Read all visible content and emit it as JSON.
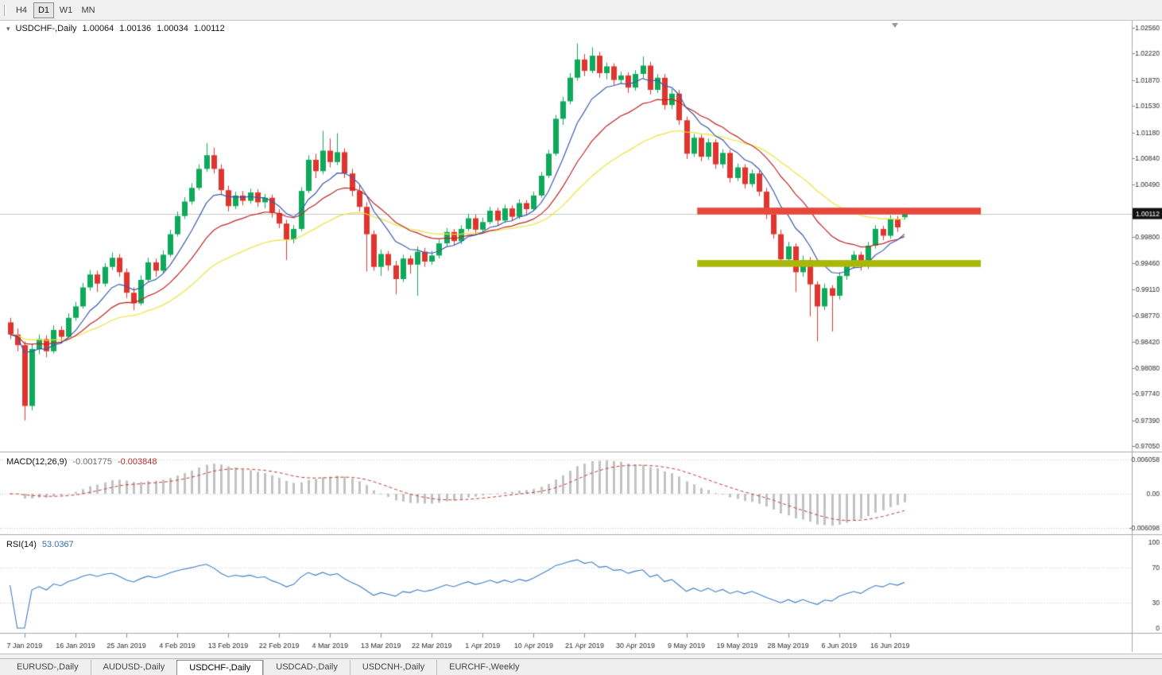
{
  "toolbar": {
    "timeframes": [
      {
        "label": "H4",
        "active": false
      },
      {
        "label": "D1",
        "active": true
      },
      {
        "label": "W1",
        "active": false
      },
      {
        "label": "MN",
        "active": false
      }
    ]
  },
  "chart_window": {
    "title": "USDCHF-,Daily",
    "quote": {
      "open": "1.00064",
      "high": "1.00136",
      "low": "1.00034",
      "close": "1.00112"
    }
  },
  "macd_panel": {
    "label": "MACD(12,26,9)",
    "macd_value": "-0.001775",
    "signal_value": "-0.003848",
    "axis_labels": [
      "0.006058",
      "0.00",
      "-0.006098"
    ],
    "params": {
      "fast": 12,
      "slow": 26,
      "signal": 9
    },
    "histogram_color": "#c2c2c2",
    "signal_color": "#c23b33"
  },
  "rsi_panel": {
    "label": "RSI(14)",
    "value": "53.0367",
    "period": 14,
    "axis_labels": [
      "100",
      "70",
      "30",
      "0"
    ],
    "levels": [
      70,
      30
    ],
    "line_color": "#3e7dc2"
  },
  "tabs": [
    {
      "label": "EURUSD-,Daily",
      "active": false
    },
    {
      "label": "AUDUSD-,Daily",
      "active": false
    },
    {
      "label": "USDCHF-,Daily",
      "active": true
    },
    {
      "label": "USDCAD-,Daily",
      "active": false
    },
    {
      "label": "USDCNH-,Daily",
      "active": false
    },
    {
      "label": "EURCHF-,Weekly",
      "active": false
    }
  ],
  "chart_data": {
    "type": "candlestick",
    "symbol": "USDCHF",
    "timeframe": "Daily",
    "colors": {
      "up": "#0ea95a",
      "down": "#e0352f",
      "ma_fast": "#3a5cad",
      "ma_mid": "#be2625",
      "ma_slow": "#ede23b",
      "current_price_line": "#c6c6c6",
      "resistance_band": "#e8483c",
      "support_band": "#a9b70b"
    },
    "price_axis": {
      "min": 0.97,
      "max": 1.0263,
      "labels": [
        "1.02560",
        "1.02220",
        "1.01870",
        "1.01530",
        "1.01180",
        "1.00840",
        "1.00490",
        "0.99800",
        "0.99460",
        "0.99110",
        "0.98770",
        "0.98420",
        "0.98080",
        "0.97740",
        "0.97390",
        "0.97050"
      ],
      "current_price": "1.00112",
      "current_price_value": 1.00112
    },
    "moving_average_periods": {
      "fast": 8,
      "mid": 17,
      "slow": 34
    },
    "date_labels": {
      "first_index": 2,
      "step": 7,
      "labels": [
        "7 Jan 2019",
        "16 Jan 2019",
        "25 Jan 2019",
        "4 Feb 2019",
        "13 Feb 2019",
        "22 Feb 2019",
        "4 Mar 2019",
        "13 Mar 2019",
        "22 Mar 2019",
        "1 Apr 2019",
        "10 Apr 2019",
        "21 Apr 2019",
        "30 Apr 2019",
        "9 May 2019",
        "19 May 2019",
        "28 May 2019",
        "6 Jun 2019",
        "16 Jun 2019"
      ]
    },
    "bands": [
      {
        "name": "resistance",
        "price_top": 1.0019,
        "price_bottom": 1.001,
        "start_index": 95,
        "end_index": 133,
        "color_key": "resistance_band"
      },
      {
        "name": "support",
        "price_top": 0.995,
        "price_bottom": 0.9941,
        "start_index": 95,
        "end_index": 133,
        "color_key": "support_band"
      }
    ],
    "candles": [
      [
        0.9868,
        0.9874,
        0.9846,
        0.9852
      ],
      [
        0.9852,
        0.986,
        0.983,
        0.9838
      ],
      [
        0.9838,
        0.9843,
        0.9739,
        0.9758
      ],
      [
        0.9758,
        0.984,
        0.9752,
        0.9833
      ],
      [
        0.9833,
        0.9852,
        0.9826,
        0.9846
      ],
      [
        0.9846,
        0.9851,
        0.9822,
        0.983
      ],
      [
        0.983,
        0.9864,
        0.9827,
        0.9858
      ],
      [
        0.9858,
        0.9863,
        0.984,
        0.9849
      ],
      [
        0.9849,
        0.988,
        0.9846,
        0.9874
      ],
      [
        0.9874,
        0.9895,
        0.987,
        0.9889
      ],
      [
        0.9889,
        0.992,
        0.9886,
        0.9914
      ],
      [
        0.9914,
        0.9937,
        0.991,
        0.9931
      ],
      [
        0.9931,
        0.9936,
        0.9908,
        0.9919
      ],
      [
        0.9919,
        0.9946,
        0.9915,
        0.9941
      ],
      [
        0.9941,
        0.996,
        0.9937,
        0.9953
      ],
      [
        0.9953,
        0.9958,
        0.9928,
        0.9934
      ],
      [
        0.9934,
        0.9939,
        0.99,
        0.9907
      ],
      [
        0.9907,
        0.9914,
        0.9884,
        0.9893
      ],
      [
        0.9893,
        0.993,
        0.989,
        0.9924
      ],
      [
        0.9924,
        0.9953,
        0.9921,
        0.9947
      ],
      [
        0.9947,
        0.9952,
        0.9928,
        0.9936
      ],
      [
        0.9936,
        0.9963,
        0.9933,
        0.9957
      ],
      [
        0.9957,
        0.999,
        0.9954,
        0.9984
      ],
      [
        0.9984,
        1.0014,
        0.9981,
        1.0008
      ],
      [
        1.0008,
        1.0033,
        1.0004,
        1.0027
      ],
      [
        1.0027,
        1.0051,
        1.0023,
        1.0045
      ],
      [
        1.0045,
        1.0076,
        1.0042,
        1.007
      ],
      [
        1.007,
        1.0104,
        1.0066,
        1.0088
      ],
      [
        1.0088,
        1.0098,
        1.0064,
        1.007
      ],
      [
        1.007,
        1.0076,
        1.0036,
        1.0042
      ],
      [
        1.0042,
        1.0048,
        1.0014,
        1.0021
      ],
      [
        1.0021,
        1.004,
        1.0017,
        1.0035
      ],
      [
        1.0035,
        1.0041,
        1.0022,
        1.0028
      ],
      [
        1.0028,
        1.0044,
        1.0024,
        1.0039
      ],
      [
        1.0039,
        1.0043,
        1.002,
        1.0026
      ],
      [
        1.0026,
        1.0037,
        1.0018,
        1.0032
      ],
      [
        1.0032,
        1.0036,
        1.0006,
        1.0012
      ],
      [
        1.0012,
        1.0017,
        0.9992,
        0.9998
      ],
      [
        0.9998,
        1.0003,
        0.995,
        0.9977
      ],
      [
        0.9977,
        0.9996,
        0.9972,
        0.9991
      ],
      [
        0.9991,
        1.0046,
        0.9988,
        1.0041
      ],
      [
        1.0041,
        1.0088,
        1.0038,
        1.0082
      ],
      [
        1.0082,
        1.009,
        1.0058,
        1.0067
      ],
      [
        1.0067,
        1.012,
        1.0063,
        1.0094
      ],
      [
        1.0094,
        1.011,
        1.0072,
        1.0079
      ],
      [
        1.0079,
        1.0117,
        1.0075,
        1.0092
      ],
      [
        1.0092,
        1.0097,
        1.0058,
        1.0064
      ],
      [
        1.0064,
        1.007,
        1.0034,
        1.0041
      ],
      [
        1.0041,
        1.0049,
        1.0014,
        1.002
      ],
      [
        1.002,
        1.0026,
        0.9935,
        0.9984
      ],
      [
        0.9984,
        0.9989,
        0.9936,
        0.9941
      ],
      [
        0.9941,
        0.9964,
        0.9929,
        0.9958
      ],
      [
        0.9958,
        0.9962,
        0.9936,
        0.9943
      ],
      [
        0.9943,
        0.9949,
        0.9905,
        0.9925
      ],
      [
        0.9925,
        0.9957,
        0.9921,
        0.9952
      ],
      [
        0.9952,
        0.9956,
        0.9932,
        0.9944
      ],
      [
        0.9944,
        0.9968,
        0.9903,
        0.9961
      ],
      [
        0.9961,
        0.9966,
        0.9941,
        0.9948
      ],
      [
        0.9948,
        0.9962,
        0.9944,
        0.9956
      ],
      [
        0.9956,
        0.9977,
        0.9952,
        0.9972
      ],
      [
        0.9972,
        0.9992,
        0.9968,
        0.9987
      ],
      [
        0.9987,
        0.9991,
        0.9969,
        0.9975
      ],
      [
        0.9975,
        0.9996,
        0.9971,
        0.9991
      ],
      [
        0.9991,
        1.0011,
        0.9988,
        1.0005
      ],
      [
        1.0005,
        1.001,
        0.9984,
        0.999
      ],
      [
        0.999,
        1.0006,
        0.9986,
        1.0
      ],
      [
        1.0,
        1.002,
        0.9997,
        1.0015
      ],
      [
        1.0015,
        1.0019,
        0.9996,
        1.0002
      ],
      [
        1.0002,
        1.0023,
        0.9999,
        1.0018
      ],
      [
        1.0018,
        1.0022,
        1.0001,
        1.0007
      ],
      [
        1.0007,
        1.003,
        1.0004,
        1.0025
      ],
      [
        1.0025,
        1.0029,
        1.001,
        1.0017
      ],
      [
        1.0017,
        1.004,
        1.0014,
        1.0035
      ],
      [
        1.0035,
        1.0066,
        1.0032,
        1.0061
      ],
      [
        1.0061,
        1.0095,
        1.0058,
        1.009
      ],
      [
        1.009,
        1.0141,
        1.0087,
        1.0136
      ],
      [
        1.0136,
        1.0165,
        1.0128,
        1.0159
      ],
      [
        1.0159,
        1.0196,
        1.0155,
        1.019
      ],
      [
        1.019,
        1.0235,
        1.0186,
        1.0214
      ],
      [
        1.0214,
        1.0221,
        1.0192,
        1.0199
      ],
      [
        1.0199,
        1.023,
        1.0196,
        1.0219
      ],
      [
        1.0219,
        1.0224,
        1.019,
        1.0196
      ],
      [
        1.0196,
        1.021,
        1.0188,
        1.0205
      ],
      [
        1.0205,
        1.0209,
        1.018,
        1.0187
      ],
      [
        1.0187,
        1.0198,
        1.0182,
        1.0193
      ],
      [
        1.0193,
        1.0197,
        1.017,
        1.0177
      ],
      [
        1.0177,
        1.02,
        1.0173,
        1.0195
      ],
      [
        1.0195,
        1.0218,
        1.019,
        1.0206
      ],
      [
        1.0206,
        1.0211,
        1.0168,
        1.0174
      ],
      [
        1.0174,
        1.0195,
        1.017,
        1.019
      ],
      [
        1.019,
        1.0195,
        1.0148,
        1.0154
      ],
      [
        1.0154,
        1.0175,
        1.0149,
        1.0169
      ],
      [
        1.0169,
        1.0174,
        1.0128,
        1.0134
      ],
      [
        1.0134,
        1.0139,
        1.0083,
        1.009
      ],
      [
        1.009,
        1.0116,
        1.0086,
        1.0111
      ],
      [
        1.0111,
        1.0115,
        1.008,
        1.0086
      ],
      [
        1.0086,
        1.011,
        1.0082,
        1.0105
      ],
      [
        1.0105,
        1.0109,
        1.007,
        1.0076
      ],
      [
        1.0076,
        1.0096,
        1.0071,
        1.0091
      ],
      [
        1.0091,
        1.0095,
        1.0052,
        1.0058
      ],
      [
        1.0058,
        1.0077,
        1.0054,
        1.0072
      ],
      [
        1.0072,
        1.0076,
        1.0044,
        1.005
      ],
      [
        1.005,
        1.0069,
        1.0046,
        1.0064
      ],
      [
        1.0064,
        1.0068,
        1.0034,
        1.004
      ],
      [
        1.004,
        1.0045,
        1.0004,
        1.001
      ],
      [
        1.001,
        1.0015,
        0.9978,
        0.9984
      ],
      [
        0.9984,
        0.999,
        0.9945,
        0.9951
      ],
      [
        0.9951,
        0.9974,
        0.9946,
        0.9968
      ],
      [
        0.9968,
        0.9972,
        0.9908,
        0.9934
      ],
      [
        0.9934,
        0.9956,
        0.9928,
        0.995
      ],
      [
        0.995,
        0.9954,
        0.9876,
        0.9918
      ],
      [
        0.9918,
        0.9922,
        0.9843,
        0.9889
      ],
      [
        0.9889,
        0.9919,
        0.9884,
        0.9913
      ],
      [
        0.9913,
        0.9917,
        0.9856,
        0.9903
      ],
      [
        0.9903,
        0.9934,
        0.9898,
        0.9929
      ],
      [
        0.9929,
        0.995,
        0.9924,
        0.9944
      ],
      [
        0.9944,
        0.9962,
        0.9939,
        0.9957
      ],
      [
        0.9957,
        0.9961,
        0.9936,
        0.9942
      ],
      [
        0.9942,
        0.9974,
        0.9938,
        0.9969
      ],
      [
        0.9969,
        0.9996,
        0.9965,
        0.9991
      ],
      [
        0.9991,
        0.9995,
        0.9976,
        0.9982
      ],
      [
        0.9982,
        1.0009,
        0.9978,
        1.0004
      ],
      [
        1.0004,
        1.0008,
        0.9987,
        0.9993
      ],
      [
        1.00064,
        1.00136,
        1.00034,
        1.00112
      ]
    ]
  }
}
